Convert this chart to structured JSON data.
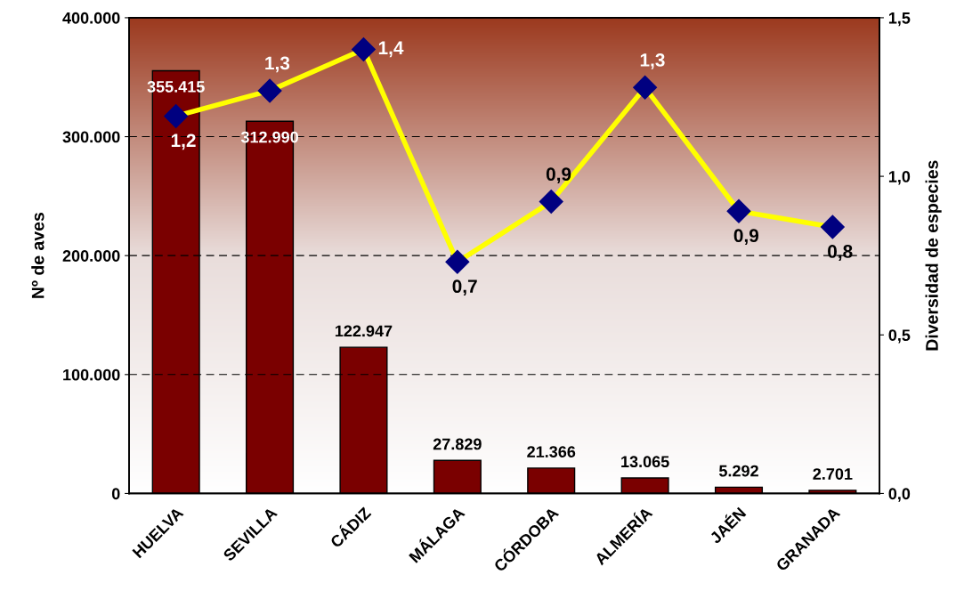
{
  "chart_data": {
    "type": "bar",
    "xlabel": null,
    "ylabel": "Nº de aves",
    "y2label": "Diversidad de especies",
    "categories": [
      "HUELVA",
      "SEVILLA",
      "CÁDIZ",
      "MÁLAGA",
      "CÓRDOBA",
      "ALMERÍA",
      "JAÉN",
      "GRANADA"
    ],
    "series": [
      {
        "color": "#7a0000",
        "values": [
          355415,
          312990,
          122947,
          27829,
          21366,
          13065,
          5292,
          2701
        ],
        "value_labels": [
          "355.415",
          "312.990",
          "122.947",
          "27.829",
          "21.366",
          "13.065",
          "5.292",
          "2.701"
        ]
      },
      {
        "type": "line",
        "axis": "y2",
        "color": "#ffff00",
        "marker": "diamond",
        "values": [
          1.19,
          1.27,
          1.4,
          0.73,
          0.92,
          1.28,
          0.89,
          0.84
        ],
        "value_labels": [
          "1,2",
          "1,3",
          "1,4",
          "0,7",
          "0,9",
          "1,3",
          "0,9",
          "0,8"
        ]
      }
    ],
    "ylim": [
      0,
      400000
    ],
    "yticks": [
      {
        "value": 0,
        "label": "0"
      },
      {
        "value": 100000,
        "label": "100.000"
      },
      {
        "value": 200000,
        "label": "200.000"
      },
      {
        "value": 300000,
        "label": "300.000"
      },
      {
        "value": 400000,
        "label": "400.000"
      }
    ],
    "y2lim": [
      0,
      1.5
    ],
    "y2ticks": [
      {
        "value": 0,
        "label": "0,0"
      },
      {
        "value": 0.5,
        "label": "0,5"
      },
      {
        "value": 1.0,
        "label": "1,0"
      },
      {
        "value": 1.5,
        "label": "1,5"
      }
    ],
    "grid": "y"
  }
}
